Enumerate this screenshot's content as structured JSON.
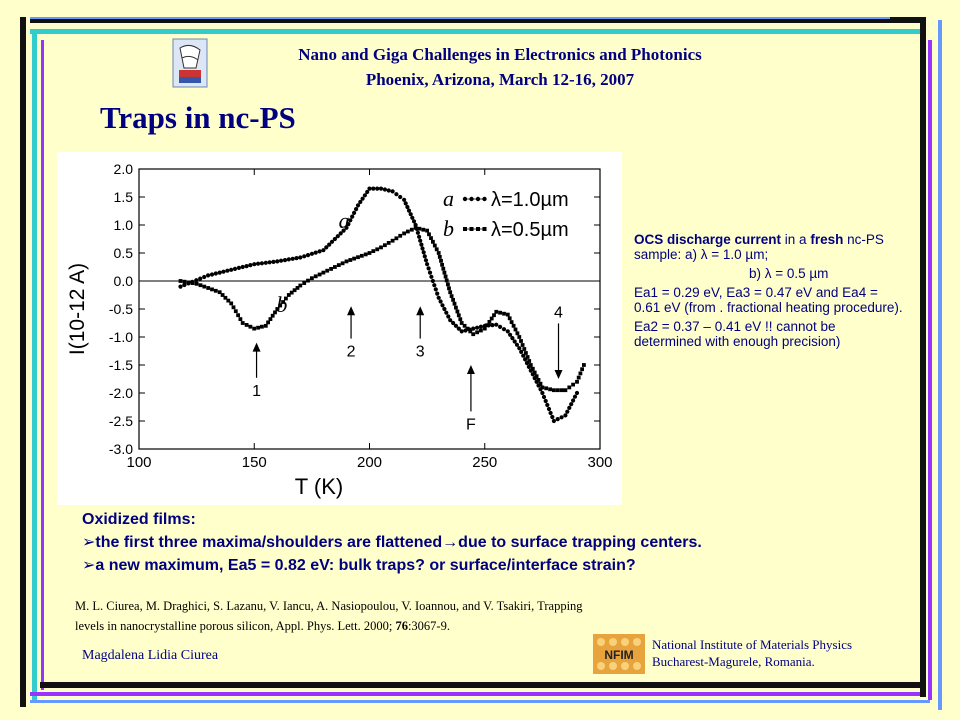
{
  "header": {
    "line1": "Nano and Giga Challenges in Electronics and Photonics",
    "line2": "Phoenix, Arizona, March 12-16, 2007"
  },
  "slide_title": "Traps in nc-PS",
  "chart_data": {
    "type": "scatter",
    "title": "",
    "xlabel": "T (K)",
    "ylabel": "I(10-12 A)",
    "xlim": [
      100,
      300
    ],
    "ylim": [
      -3.0,
      2.0
    ],
    "x_ticks": [
      "100",
      "150",
      "200",
      "250",
      "300"
    ],
    "y_ticks": [
      "2.0",
      "1.5",
      "1.0",
      "0.5",
      "0.0",
      "-0.5",
      "-1.0",
      "-1.5",
      "-2.0",
      "-2.5",
      "-3.0"
    ],
    "grid": false,
    "legend": {
      "placement": "top-right",
      "entries": [
        {
          "key": "a",
          "label": "λ=1.0µm",
          "marker": "circle"
        },
        {
          "key": "b",
          "label": "λ=0.5µm",
          "marker": "square"
        }
      ]
    },
    "series": [
      {
        "name": "a",
        "marker": "circle",
        "x": [
          118,
          130,
          140,
          150,
          160,
          170,
          180,
          190,
          195,
          200,
          205,
          210,
          215,
          220,
          225,
          230,
          235,
          240,
          245,
          250,
          255,
          260,
          265,
          270,
          275,
          280,
          285,
          290
        ],
        "y": [
          -0.1,
          0.1,
          0.2,
          0.3,
          0.35,
          0.42,
          0.55,
          0.95,
          1.35,
          1.65,
          1.65,
          1.6,
          1.45,
          1.0,
          0.3,
          -0.3,
          -0.7,
          -0.9,
          -0.85,
          -0.8,
          -0.78,
          -0.9,
          -1.2,
          -1.6,
          -2.0,
          -2.5,
          -2.4,
          -2.0
        ]
      },
      {
        "name": "b",
        "marker": "square",
        "x": [
          118,
          125,
          135,
          140,
          145,
          150,
          155,
          160,
          165,
          170,
          175,
          180,
          185,
          190,
          200,
          205,
          210,
          215,
          220,
          225,
          230,
          235,
          240,
          245,
          250,
          255,
          260,
          265,
          270,
          275,
          280,
          285,
          290,
          293
        ],
        "y": [
          0,
          -0.05,
          -0.2,
          -0.4,
          -0.75,
          -0.85,
          -0.8,
          -0.5,
          -0.25,
          -0.08,
          0.05,
          0.15,
          0.25,
          0.35,
          0.5,
          0.6,
          0.72,
          0.85,
          0.95,
          0.9,
          0.5,
          -0.2,
          -0.75,
          -0.95,
          -0.85,
          -0.55,
          -0.6,
          -1.0,
          -1.5,
          -1.9,
          -1.95,
          -1.95,
          -1.8,
          -1.5
        ]
      }
    ],
    "annotations": [
      {
        "text": "a",
        "x": 189,
        "y": 0.95
      },
      {
        "text": "b",
        "x": 162,
        "y": -0.55
      },
      {
        "text": "1",
        "x": 151,
        "y": -2.05,
        "arrow_to": [
          151,
          -1.1
        ]
      },
      {
        "text": "2",
        "x": 192,
        "y": -1.35,
        "arrow_to": [
          192,
          -0.45
        ]
      },
      {
        "text": "3",
        "x": 222,
        "y": -1.35,
        "arrow_to": [
          222,
          -0.45
        ]
      },
      {
        "text": "F",
        "x": 244,
        "y": -2.65,
        "arrow_to": [
          244,
          -1.5
        ]
      },
      {
        "text": "4",
        "x": 282,
        "y": -0.65,
        "arrow_to": [
          282,
          -1.75
        ]
      }
    ]
  },
  "caption": {
    "p1_bold": "OCS discharge current",
    "p1_mid": " in a ",
    "p1_bold2": "fresh",
    "p1_rest": " nc-PS sample: a) λ = 1.0 µm;",
    "p2": "b) λ = 0.5 µm",
    "p3": "Ea1 = 0.29 eV, Ea3 = 0.47 eV and Ea4 = 0.61 eV (from . fractional heating procedure).",
    "p4": "Ea2 = 0.37 – 0.41 eV !! cannot be determined with enough precision)"
  },
  "oxidized": {
    "heading": "Oxidized films:",
    "bullet1": "the first three maxima/shoulders are flattened→due to surface trapping centers.",
    "bullet2": "a new maximum, Ea5 = 0.82 eV: bulk traps? or surface/interface strain?"
  },
  "reference": {
    "text": "M. L. Ciurea, M. Draghici, S. Lazanu, V. Iancu, A. Nasiopoulou, V. Ioannou, and V. Tsakiri, Trapping levels in nanocrystalline porous silicon, Appl. Phys. Lett. 2000; ",
    "volume": "76",
    "pages": ":3067-9."
  },
  "author": "Magdalena Lidia Ciurea",
  "institution": {
    "line1": "National Institute of Materials Physics",
    "line2": "Bucharest-Magurele, Romania."
  },
  "logo_letters": "NFIM",
  "colors": {
    "background": "#ffffcc",
    "title_blue": "#000080",
    "frame_cyan": "#33cccc",
    "frame_dark": "#111111",
    "frame_purple": "#9933ff",
    "frame_blue": "#6699ff"
  }
}
